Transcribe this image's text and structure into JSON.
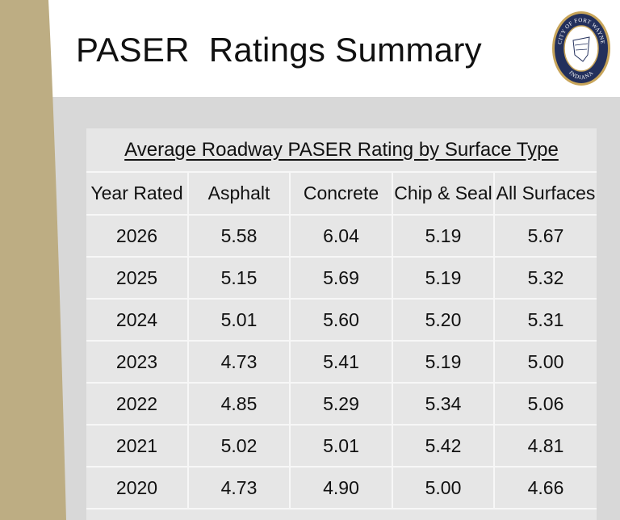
{
  "slide": {
    "title": "PASER  Ratings Summary"
  },
  "logo": {
    "name": "city-seal",
    "top_text": "CITY OF FORT WAYNE",
    "bottom_text": "INDIANA",
    "colors": {
      "ring": "#23305c",
      "gold": "#c8a55a",
      "center": "#ffffff"
    }
  },
  "table": {
    "caption": "Average Roadway PASER Rating by Surface Type",
    "headers": [
      "Year Rated",
      "Asphalt",
      "Concrete",
      "Chip & Seal",
      "All Surfaces"
    ],
    "rows": [
      [
        "2026",
        "5.58",
        "6.04",
        "5.19",
        "5.67"
      ],
      [
        "2025",
        "5.15",
        "5.69",
        "5.19",
        "5.32"
      ],
      [
        "2024",
        "5.01",
        "5.60",
        "5.20",
        "5.31"
      ],
      [
        "2023",
        "4.73",
        "5.41",
        "5.19",
        "5.00"
      ],
      [
        "2022",
        "4.85",
        "5.29",
        "5.34",
        "5.06"
      ],
      [
        "2021",
        "5.02",
        "5.01",
        "5.42",
        "4.81"
      ],
      [
        "2020",
        "4.73",
        "4.90",
        "5.00",
        "4.66"
      ]
    ]
  },
  "colors": {
    "tan_accent": "#bdad83",
    "content_background": "#d8d8d8",
    "table_background": "#e6e6e6",
    "gridline": "#f7f7f7"
  }
}
